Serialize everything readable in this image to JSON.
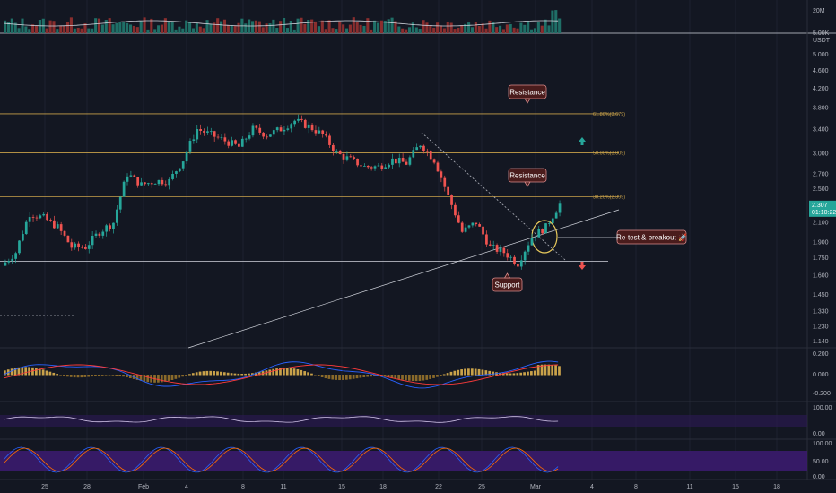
{
  "colors": {
    "background": "#131722",
    "up": "#26a69a",
    "down": "#ef5350",
    "grid": "#1c2030",
    "axis_text": "#b2b5be",
    "fib_line": "#c9a24a",
    "support_line": "#d1d4dc",
    "callout_fill": "#4a1c1c",
    "callout_stroke": "#d98a8a",
    "circle": "#e8c95c",
    "macd_line": "#2962ff",
    "signal_line": "#ff3b3b",
    "histogram": "#c9a24a",
    "rsi_line": "#d1c4e9",
    "osc_band": "#3b1b6e",
    "stoch_k": "#2962ff",
    "stoch_d": "#ff6d00",
    "price_tag": "#26a69a"
  },
  "price_axis": {
    "currency": "USDT",
    "ticks": [
      "5.000",
      "4.600",
      "4.200",
      "3.800",
      "3.400",
      "3.000",
      "2.700",
      "2.500",
      "2.300",
      "2.100",
      "1.900",
      "1.750",
      "1.600",
      "1.450",
      "1.330",
      "1.230",
      "1.140"
    ],
    "volume_ticks": [
      "20M",
      "5.00K"
    ],
    "macd_ticks": [
      "0.200",
      "0.000",
      "-0.200"
    ],
    "rsi_ticks": [
      "100.00",
      "0.00"
    ],
    "stoch_ticks": [
      "100.00",
      "50.00",
      "0.00"
    ]
  },
  "time_axis": [
    "25",
    "28",
    "Feb",
    "4",
    "8",
    "11",
    "15",
    "18",
    "22",
    "25",
    "Mar",
    "4",
    "8",
    "11",
    "15",
    "18"
  ],
  "current_price": {
    "value": "2.307",
    "countdown": "01:10:22"
  },
  "callouts": [
    {
      "id": "resistance-top",
      "label": "Resistance"
    },
    {
      "id": "resistance-mid",
      "label": "Resistance"
    },
    {
      "id": "support",
      "label": "Support"
    },
    {
      "id": "retest",
      "label": "Re-test & breakout 🚀"
    }
  ],
  "fib_labels": [
    "61.80%(3.679)",
    "50.00%(3.009)",
    "38.20%(2.399)"
  ],
  "chart_data": {
    "type": "candlestick",
    "x": [
      "Jan 22",
      "Jan 23",
      "Jan 24",
      "Jan 25",
      "Jan 26",
      "Jan 27",
      "Jan 28",
      "Jan 29",
      "Jan 30",
      "Jan 31",
      "Feb 1",
      "Feb 2",
      "Feb 3",
      "Feb 4",
      "Feb 5",
      "Feb 6",
      "Feb 7",
      "Feb 8",
      "Feb 9",
      "Feb 10",
      "Feb 11",
      "Feb 12",
      "Feb 13",
      "Feb 14",
      "Feb 15",
      "Feb 16",
      "Feb 17",
      "Feb 18",
      "Feb 19",
      "Feb 20",
      "Feb 21",
      "Feb 22",
      "Feb 23",
      "Feb 24",
      "Feb 25",
      "Feb 26",
      "Feb 27",
      "Feb 28",
      "Mar 1",
      "Mar 2"
    ],
    "close": [
      1.8,
      2.2,
      2.15,
      2.05,
      1.85,
      1.85,
      2.0,
      2.1,
      2.7,
      2.55,
      2.6,
      2.6,
      2.9,
      3.4,
      3.3,
      3.2,
      3.1,
      3.4,
      3.3,
      3.4,
      3.55,
      3.45,
      3.3,
      3.0,
      2.9,
      2.8,
      2.8,
      2.9,
      2.85,
      3.15,
      2.9,
      2.4,
      2.0,
      2.1,
      1.85,
      1.8,
      1.7,
      1.95,
      2.05,
      2.307
    ],
    "ylim": [
      1.1,
      5.5
    ],
    "scale": "log",
    "fib_levels": [
      {
        "ratio": 0.618,
        "price": 3.679
      },
      {
        "ratio": 0.5,
        "price": 3.009
      },
      {
        "ratio": 0.382,
        "price": 2.399
      }
    ],
    "support": 1.72,
    "annotations": [
      "Resistance",
      "Resistance",
      "Support",
      "Re-test & breakout"
    ]
  }
}
